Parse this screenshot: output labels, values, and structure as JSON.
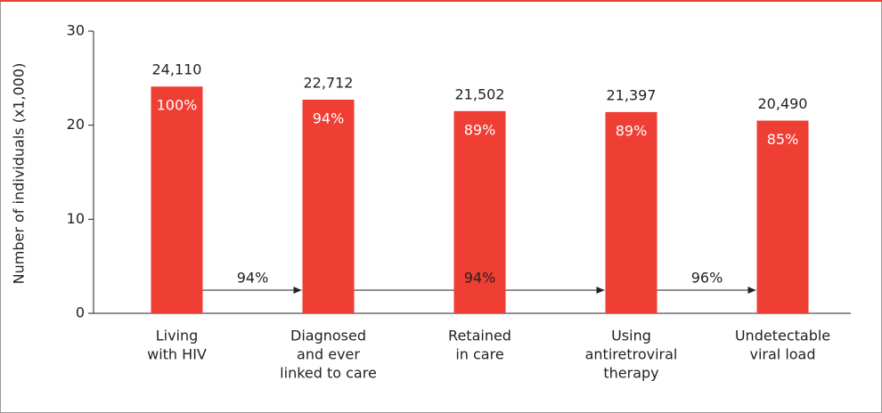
{
  "chart_data": {
    "type": "bar",
    "y_label": "Number of individuals (x1,000)",
    "categories": [
      [
        "Living",
        "with HIV"
      ],
      [
        "Diagnosed",
        "and ever",
        "linked to care"
      ],
      [
        "Retained",
        "in care"
      ],
      [
        "Using",
        "antiretroviral",
        "therapy"
      ],
      [
        "Undetectable",
        "viral load"
      ]
    ],
    "values": [
      24.11,
      22.712,
      21.502,
      21.397,
      20.49
    ],
    "value_labels": [
      "24,110",
      "22,712",
      "21,502",
      "21,397",
      "20,490"
    ],
    "percent_labels": [
      "100%",
      "94%",
      "89%",
      "89%",
      "85%"
    ],
    "flow_labels": [
      "94%",
      "94%",
      "96%"
    ],
    "color": "#ef3e33",
    "ylim": [
      0,
      30
    ],
    "yticks": [
      0,
      10,
      20,
      30
    ]
  }
}
